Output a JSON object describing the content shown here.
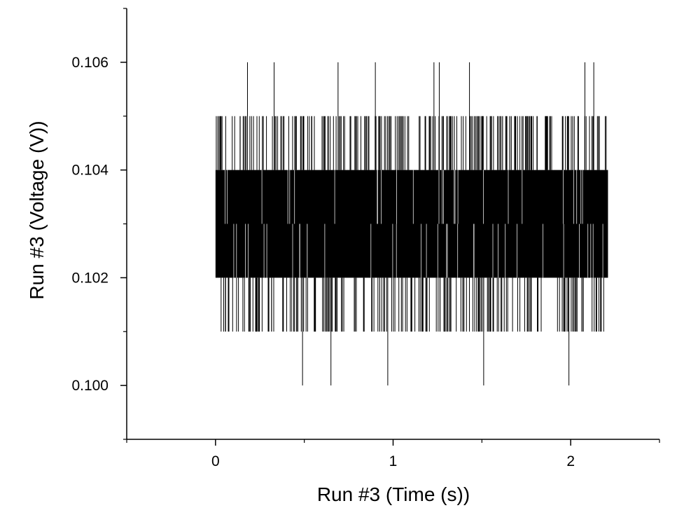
{
  "chart_data": {
    "type": "line",
    "xlabel": "Run #3 (Time (s))",
    "ylabel": "Run #3 (Voltage (V))",
    "xlim": [
      -0.5,
      2.5
    ],
    "ylim": [
      0.099,
      0.107
    ],
    "x_ticks": [
      0,
      1,
      2
    ],
    "x_tick_labels": [
      "0",
      "1",
      "2"
    ],
    "y_ticks": [
      0.1,
      0.102,
      0.104,
      0.106
    ],
    "y_tick_labels": [
      "0.100",
      "0.102",
      "0.104",
      "0.106"
    ],
    "grid": false,
    "series": [
      {
        "color": "#000000",
        "x_range": [
          0,
          2.21
        ],
        "dominant_band": [
          0.102,
          0.104
        ],
        "frequent_extremes": [
          0.101,
          0.105
        ],
        "spikes": [
          {
            "x": 0.18,
            "y": 0.106
          },
          {
            "x": 0.33,
            "y": 0.106
          },
          {
            "x": 0.69,
            "y": 0.106
          },
          {
            "x": 0.9,
            "y": 0.106
          },
          {
            "x": 1.23,
            "y": 0.106
          },
          {
            "x": 1.26,
            "y": 0.106
          },
          {
            "x": 1.43,
            "y": 0.106
          },
          {
            "x": 2.08,
            "y": 0.106
          },
          {
            "x": 2.13,
            "y": 0.106
          },
          {
            "x": 0.49,
            "y": 0.1
          },
          {
            "x": 0.65,
            "y": 0.1
          },
          {
            "x": 0.97,
            "y": 0.1
          },
          {
            "x": 1.51,
            "y": 0.1
          },
          {
            "x": 1.99,
            "y": 0.1
          }
        ]
      }
    ]
  }
}
